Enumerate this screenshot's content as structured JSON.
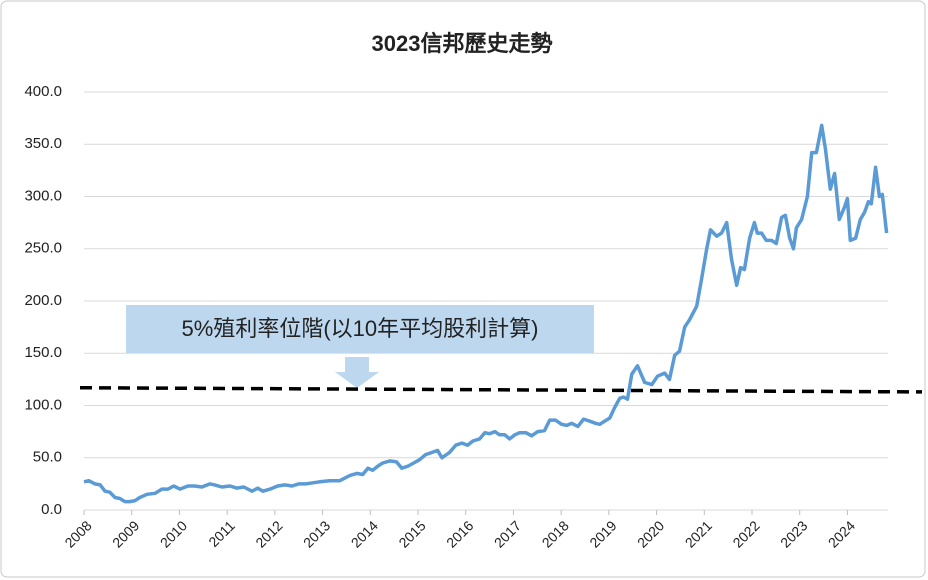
{
  "chart_data": {
    "type": "line",
    "title": "3023信邦歷史走勢",
    "xlim": [
      2008,
      2024.85
    ],
    "xticks": [
      2008,
      2009,
      2010,
      2011,
      2012,
      2013,
      2014,
      2015,
      2016,
      2017,
      2018,
      2019,
      2020,
      2021,
      2022,
      2023,
      2024
    ],
    "ylim": [
      0,
      400
    ],
    "yticks": [
      {
        "value": 0,
        "label": "0.0"
      },
      {
        "value": 50,
        "label": "50.0"
      },
      {
        "value": 100,
        "label": "100.0"
      },
      {
        "value": 150,
        "label": "150.0"
      },
      {
        "value": 200,
        "label": "200.0"
      },
      {
        "value": 250,
        "label": "250.0"
      },
      {
        "value": 300,
        "label": "300.0"
      },
      {
        "value": 350,
        "label": "350.0"
      },
      {
        "value": 400,
        "label": "400.0"
      }
    ],
    "grid": true,
    "color": "#5b9bd5",
    "x": [
      2008.0,
      2008.1,
      2008.23,
      2008.34,
      2008.44,
      2008.54,
      2008.65,
      2008.75,
      2008.86,
      2008.96,
      2009.07,
      2009.17,
      2009.32,
      2009.49,
      2009.63,
      2009.76,
      2009.88,
      2010.01,
      2010.18,
      2010.32,
      2010.47,
      2010.64,
      2010.74,
      2010.89,
      2011.06,
      2011.2,
      2011.35,
      2011.52,
      2011.64,
      2011.75,
      2011.9,
      2012.06,
      2012.21,
      2012.36,
      2012.5,
      2012.65,
      2012.8,
      2012.94,
      2013.15,
      2013.36,
      2013.57,
      2013.72,
      2013.84,
      2013.95,
      2014.05,
      2014.16,
      2014.26,
      2014.41,
      2014.55,
      2014.66,
      2014.79,
      2014.91,
      2015.03,
      2015.16,
      2015.29,
      2015.41,
      2015.5,
      2015.66,
      2015.79,
      2015.92,
      2016.04,
      2016.15,
      2016.29,
      2016.4,
      2016.5,
      2016.61,
      2016.71,
      2016.82,
      2016.92,
      2017.03,
      2017.13,
      2017.26,
      2017.38,
      2017.51,
      2017.65,
      2017.76,
      2017.88,
      2018.01,
      2018.12,
      2018.22,
      2018.35,
      2018.47,
      2018.6,
      2018.72,
      2018.81,
      2018.91,
      2019.02,
      2019.12,
      2019.23,
      2019.31,
      2019.39,
      2019.48,
      2019.6,
      2019.75,
      2019.9,
      2020.02,
      2020.17,
      2020.27,
      2020.38,
      2020.48,
      2020.59,
      2020.69,
      2020.84,
      2020.94,
      2021.05,
      2021.13,
      2021.26,
      2021.36,
      2021.47,
      2021.57,
      2021.68,
      2021.76,
      2021.84,
      2021.95,
      2022.05,
      2022.11,
      2022.2,
      2022.3,
      2022.41,
      2022.51,
      2022.62,
      2022.7,
      2022.79,
      2022.87,
      2022.93,
      2023.04,
      2023.16,
      2023.25,
      2023.35,
      2023.46,
      2023.54,
      2023.64,
      2023.73,
      2023.83,
      2023.94,
      2024.0,
      2024.06,
      2024.17,
      2024.27,
      2024.36,
      2024.44,
      2024.5,
      2024.59,
      2024.67,
      2024.73,
      2024.82
    ],
    "values": [
      27,
      28,
      25,
      24,
      18,
      17,
      12,
      11,
      8,
      8,
      9,
      12,
      15,
      16,
      20,
      20,
      23,
      20,
      23,
      23,
      22,
      25,
      24,
      22,
      23,
      21,
      22,
      18,
      21,
      18,
      20,
      23,
      24,
      23,
      25,
      25,
      26,
      27,
      28,
      28,
      33,
      35,
      34,
      40,
      38,
      42,
      45,
      47,
      46,
      40,
      42,
      45,
      48,
      53,
      55,
      57,
      50,
      55,
      62,
      64,
      62,
      66,
      68,
      74,
      73,
      75,
      72,
      72,
      68,
      72,
      74,
      74,
      71,
      75,
      76,
      86,
      86,
      82,
      81,
      83,
      80,
      87,
      85,
      83,
      82,
      85,
      88,
      98,
      107,
      108,
      106,
      130,
      138,
      122,
      120,
      128,
      131,
      125,
      148,
      152,
      175,
      182,
      195,
      220,
      250,
      268,
      262,
      265,
      275,
      240,
      215,
      232,
      230,
      260,
      275,
      265,
      265,
      258,
      258,
      255,
      280,
      282,
      260,
      250,
      270,
      278,
      300,
      342,
      342,
      368,
      345,
      307,
      322,
      278,
      290,
      298,
      258,
      260,
      278,
      285,
      295,
      293,
      328,
      300,
      302,
      265
    ],
    "reference": {
      "label": "5%殖利率位階(以10年平均股利計算)",
      "values": [
        117,
        113
      ]
    }
  }
}
